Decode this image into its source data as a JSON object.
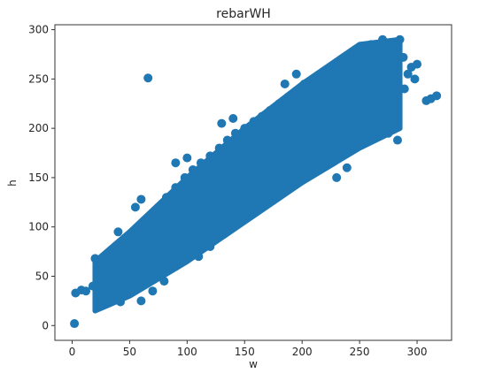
{
  "chart_data": {
    "type": "scatter",
    "title": "rebarWH",
    "xlabel": "w",
    "ylabel": "h",
    "xlim": [
      -15,
      330
    ],
    "ylim": [
      -15,
      305
    ],
    "xticks": [
      0,
      50,
      100,
      150,
      200,
      250,
      300
    ],
    "yticks": [
      0,
      50,
      100,
      150,
      200,
      250,
      300
    ],
    "grid": false,
    "legend": "none",
    "color": "#1f77b4",
    "trend": {
      "description": "dense linear cloud, h roughly 0.9*w + 5",
      "band_points": [
        {
          "w": 20,
          "h_low": 15,
          "h_high": 65
        },
        {
          "w": 50,
          "h_low": 30,
          "h_high": 95
        },
        {
          "w": 100,
          "h_low": 65,
          "h_high": 150
        },
        {
          "w": 150,
          "h_low": 105,
          "h_high": 200
        },
        {
          "w": 200,
          "h_low": 145,
          "h_high": 245
        },
        {
          "w": 250,
          "h_low": 180,
          "h_high": 285
        },
        {
          "w": 285,
          "h_low": 200,
          "h_high": 290
        }
      ]
    },
    "series": [
      {
        "values": [
          [
            2,
            2
          ],
          [
            3,
            33
          ],
          [
            8,
            36
          ],
          [
            12,
            35
          ],
          [
            18,
            40
          ],
          [
            20,
            68
          ],
          [
            22,
            55
          ],
          [
            25,
            20
          ],
          [
            28,
            45
          ],
          [
            30,
            58
          ],
          [
            32,
            28
          ],
          [
            35,
            70
          ],
          [
            38,
            40
          ],
          [
            40,
            62
          ],
          [
            42,
            24
          ],
          [
            45,
            80
          ],
          [
            48,
            55
          ],
          [
            50,
            35
          ],
          [
            52,
            90
          ],
          [
            55,
            70
          ],
          [
            58,
            48
          ],
          [
            60,
            100
          ],
          [
            62,
            78
          ],
          [
            65,
            55
          ],
          [
            66,
            251
          ],
          [
            68,
            110
          ],
          [
            70,
            88
          ],
          [
            72,
            62
          ],
          [
            75,
            120
          ],
          [
            78,
            95
          ],
          [
            80,
            72
          ],
          [
            82,
            130
          ],
          [
            85,
            105
          ],
          [
            88,
            80
          ],
          [
            90,
            140
          ],
          [
            92,
            115
          ],
          [
            95,
            85
          ],
          [
            98,
            150
          ],
          [
            100,
            122
          ],
          [
            102,
            95
          ],
          [
            105,
            158
          ],
          [
            108,
            130
          ],
          [
            110,
            100
          ],
          [
            112,
            165
          ],
          [
            115,
            138
          ],
          [
            118,
            108
          ],
          [
            120,
            172
          ],
          [
            122,
            145
          ],
          [
            125,
            115
          ],
          [
            128,
            180
          ],
          [
            130,
            152
          ],
          [
            132,
            120
          ],
          [
            135,
            188
          ],
          [
            138,
            160
          ],
          [
            140,
            128
          ],
          [
            142,
            195
          ],
          [
            145,
            168
          ],
          [
            148,
            135
          ],
          [
            150,
            200
          ],
          [
            152,
            175
          ],
          [
            155,
            140
          ],
          [
            158,
            207
          ],
          [
            160,
            182
          ],
          [
            162,
            148
          ],
          [
            165,
            212
          ],
          [
            168,
            188
          ],
          [
            170,
            155
          ],
          [
            172,
            218
          ],
          [
            175,
            195
          ],
          [
            178,
            160
          ],
          [
            180,
            225
          ],
          [
            182,
            200
          ],
          [
            185,
            168
          ],
          [
            188,
            232
          ],
          [
            190,
            208
          ],
          [
            192,
            172
          ],
          [
            195,
            238
          ],
          [
            198,
            214
          ],
          [
            200,
            178
          ],
          [
            202,
            245
          ],
          [
            205,
            220
          ],
          [
            208,
            185
          ],
          [
            210,
            250
          ],
          [
            212,
            226
          ],
          [
            215,
            190
          ],
          [
            218,
            255
          ],
          [
            220,
            232
          ],
          [
            222,
            195
          ],
          [
            225,
            260
          ],
          [
            228,
            238
          ],
          [
            230,
            200
          ],
          [
            232,
            265
          ],
          [
            235,
            244
          ],
          [
            238,
            205
          ],
          [
            240,
            270
          ],
          [
            242,
            248
          ],
          [
            245,
            210
          ],
          [
            248,
            272
          ],
          [
            250,
            255
          ],
          [
            252,
            215
          ],
          [
            255,
            275
          ],
          [
            258,
            260
          ],
          [
            260,
            220
          ],
          [
            262,
            280
          ],
          [
            265,
            262
          ],
          [
            268,
            225
          ],
          [
            270,
            282
          ],
          [
            272,
            265
          ],
          [
            275,
            230
          ],
          [
            278,
            285
          ],
          [
            280,
            270
          ],
          [
            282,
            235
          ],
          [
            285,
            290
          ],
          [
            288,
            272
          ],
          [
            289,
            240
          ],
          [
            292,
            255
          ],
          [
            295,
            262
          ],
          [
            298,
            250
          ],
          [
            300,
            265
          ],
          [
            308,
            228
          ],
          [
            312,
            230
          ],
          [
            317,
            233
          ],
          [
            283,
            188
          ],
          [
            239,
            160
          ],
          [
            230,
            150
          ],
          [
            221,
            170
          ],
          [
            210,
            160
          ],
          [
            275,
            195
          ],
          [
            262,
            210
          ],
          [
            255,
            185
          ],
          [
            60,
            25
          ],
          [
            70,
            35
          ],
          [
            80,
            45
          ],
          [
            90,
            60
          ],
          [
            110,
            70
          ],
          [
            120,
            80
          ],
          [
            130,
            95
          ],
          [
            150,
            110
          ],
          [
            160,
            120
          ],
          [
            180,
            140
          ],
          [
            190,
            150
          ],
          [
            40,
            95
          ],
          [
            55,
            120
          ],
          [
            60,
            128
          ],
          [
            90,
            165
          ],
          [
            100,
            170
          ],
          [
            130,
            205
          ],
          [
            140,
            210
          ],
          [
            185,
            245
          ],
          [
            195,
            255
          ],
          [
            260,
            285
          ],
          [
            270,
            290
          ]
        ]
      }
    ]
  }
}
